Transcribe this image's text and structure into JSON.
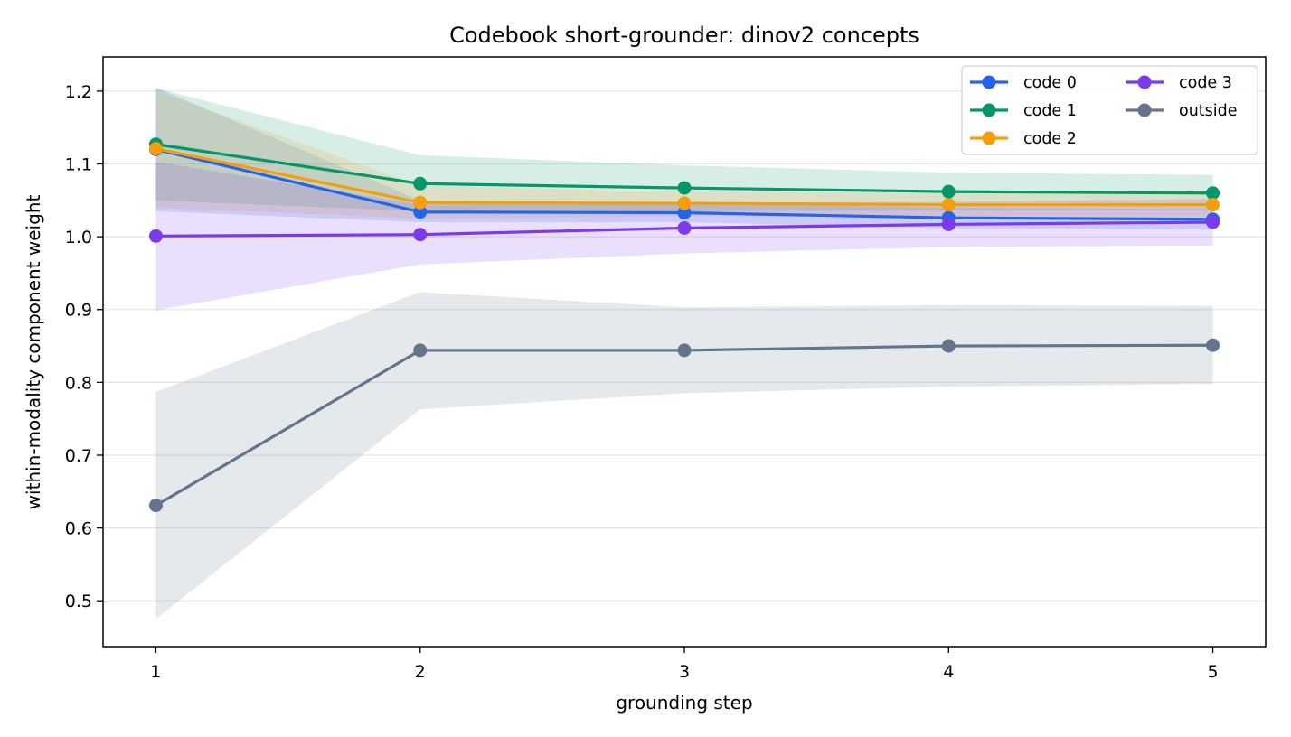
{
  "chart_data": {
    "type": "line",
    "title": "Codebook short-grounder: dinov2 concepts",
    "xlabel": "grounding step",
    "ylabel": "within-modality component weight",
    "x": [
      1,
      2,
      3,
      4,
      5
    ],
    "xlim": [
      0.8,
      5.2
    ],
    "ylim": [
      0.437,
      1.247
    ],
    "xticks": [
      "1",
      "2",
      "3",
      "4",
      "5"
    ],
    "yticks": [
      "0.5",
      "0.6",
      "0.7",
      "0.8",
      "0.9",
      "1.0",
      "1.1",
      "1.2"
    ],
    "ytick_values": [
      0.5,
      0.6,
      0.7,
      0.8,
      0.9,
      1.0,
      1.1,
      1.2
    ],
    "grid": "horizontal",
    "legend": {
      "placement": "top-right",
      "columns": 2
    },
    "series": [
      {
        "name": "code 0",
        "color": "#2563eb",
        "values": [
          1.12,
          1.034,
          1.033,
          1.026,
          1.024
        ],
        "lower": [
          1.035,
          1.02,
          1.02,
          1.012,
          1.01
        ],
        "upper": [
          1.205,
          1.05,
          1.046,
          1.04,
          1.038
        ]
      },
      {
        "name": "code 1",
        "color": "#059669",
        "values": [
          1.127,
          1.073,
          1.067,
          1.062,
          1.06
        ],
        "lower": [
          1.05,
          1.035,
          1.035,
          1.036,
          1.036
        ],
        "upper": [
          1.204,
          1.112,
          1.098,
          1.088,
          1.085
        ]
      },
      {
        "name": "code 2",
        "color": "#f59e0b",
        "values": [
          1.121,
          1.047,
          1.046,
          1.044,
          1.044
        ],
        "lower": [
          1.04,
          1.025,
          1.028,
          1.028,
          1.028
        ],
        "upper": [
          1.2,
          1.07,
          1.062,
          1.06,
          1.06
        ]
      },
      {
        "name": "code 3",
        "color": "#7c3aed",
        "values": [
          1.001,
          1.003,
          1.012,
          1.017,
          1.02
        ],
        "lower": [
          0.899,
          0.962,
          0.977,
          0.986,
          0.988
        ],
        "upper": [
          1.103,
          1.044,
          1.047,
          1.048,
          1.052
        ]
      },
      {
        "name": "outside",
        "color": "#64748b",
        "values": [
          0.631,
          0.844,
          0.844,
          0.85,
          0.851
        ],
        "lower": [
          0.475,
          0.763,
          0.785,
          0.794,
          0.798
        ],
        "upper": [
          0.787,
          0.924,
          0.903,
          0.906,
          0.905
        ]
      }
    ]
  }
}
